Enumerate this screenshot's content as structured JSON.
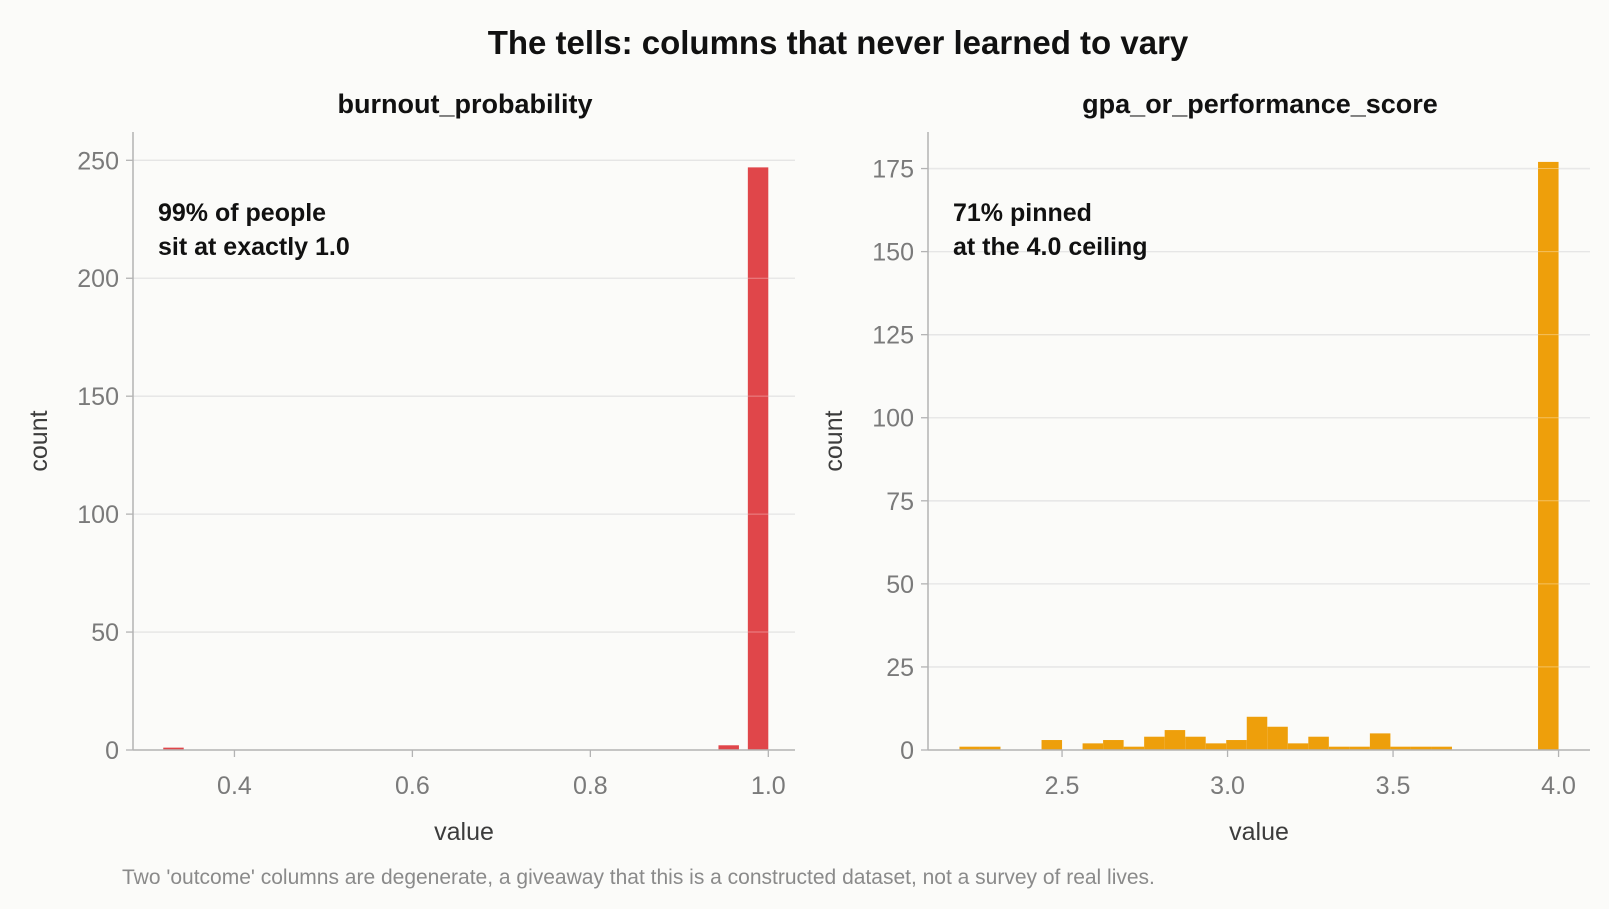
{
  "title": "The tells: columns that never learned to vary",
  "caption": "Two 'outcome' columns are degenerate, a giveaway that this is a constructed dataset, not a survey of real lives.",
  "chart_data": [
    {
      "type": "bar",
      "subtype": "histogram",
      "title": "burnout_probability",
      "xlabel": "value",
      "ylabel": "count",
      "color": "#e0464a",
      "xlim": [
        0.286,
        1.03
      ],
      "ylim": [
        0,
        262
      ],
      "xticks": [
        0.4,
        0.6,
        0.8,
        1.0
      ],
      "xtick_labels": [
        "0.4",
        "0.6",
        "0.8",
        "1.0"
      ],
      "yticks": [
        0,
        50,
        100,
        150,
        200,
        250
      ],
      "ytick_labels": [
        "0",
        "50",
        "100",
        "150",
        "200",
        "250"
      ],
      "annotation": [
        "99% of people",
        "sit at exactly 1.0"
      ],
      "bins": [
        {
          "x0": 0.32,
          "x1": 0.343,
          "count": 1
        },
        {
          "x0": 0.944,
          "x1": 0.967,
          "count": 2
        },
        {
          "x0": 0.977,
          "x1": 1.0,
          "count": 247
        }
      ],
      "grid": "horizontal"
    },
    {
      "type": "bar",
      "subtype": "histogram",
      "title": "gpa_or_performance_score",
      "xlabel": "value",
      "ylabel": "count",
      "color": "#ee9f0b",
      "xlim": [
        2.095,
        4.095
      ],
      "ylim": [
        0,
        186
      ],
      "xticks": [
        2.5,
        3.0,
        3.5,
        4.0
      ],
      "xtick_labels": [
        "2.5",
        "3.0",
        "3.5",
        "4.0"
      ],
      "yticks": [
        0,
        25,
        50,
        75,
        100,
        125,
        150,
        175
      ],
      "ytick_labels": [
        "0",
        "25",
        "50",
        "75",
        "100",
        "125",
        "150",
        "175"
      ],
      "annotation": [
        "71% pinned",
        "at the 4.0 ceiling"
      ],
      "bins": [
        {
          "x0": 2.19,
          "x1": 2.252,
          "count": 1
        },
        {
          "x0": 2.252,
          "x1": 2.314,
          "count": 1
        },
        {
          "x0": 2.314,
          "x1": 2.376,
          "count": 0
        },
        {
          "x0": 2.376,
          "x1": 2.438,
          "count": 0
        },
        {
          "x0": 2.438,
          "x1": 2.5,
          "count": 3
        },
        {
          "x0": 2.5,
          "x1": 2.562,
          "count": 0
        },
        {
          "x0": 2.562,
          "x1": 2.624,
          "count": 2
        },
        {
          "x0": 2.624,
          "x1": 2.686,
          "count": 3
        },
        {
          "x0": 2.686,
          "x1": 2.748,
          "count": 1
        },
        {
          "x0": 2.748,
          "x1": 2.81,
          "count": 4
        },
        {
          "x0": 2.81,
          "x1": 2.872,
          "count": 6
        },
        {
          "x0": 2.872,
          "x1": 2.934,
          "count": 4
        },
        {
          "x0": 2.934,
          "x1": 2.996,
          "count": 2
        },
        {
          "x0": 2.996,
          "x1": 3.058,
          "count": 3
        },
        {
          "x0": 3.058,
          "x1": 3.12,
          "count": 10
        },
        {
          "x0": 3.12,
          "x1": 3.182,
          "count": 7
        },
        {
          "x0": 3.182,
          "x1": 3.244,
          "count": 2
        },
        {
          "x0": 3.244,
          "x1": 3.306,
          "count": 4
        },
        {
          "x0": 3.306,
          "x1": 3.368,
          "count": 1
        },
        {
          "x0": 3.368,
          "x1": 3.43,
          "count": 1
        },
        {
          "x0": 3.43,
          "x1": 3.492,
          "count": 5
        },
        {
          "x0": 3.492,
          "x1": 3.554,
          "count": 1
        },
        {
          "x0": 3.554,
          "x1": 3.616,
          "count": 1
        },
        {
          "x0": 3.616,
          "x1": 3.678,
          "count": 1
        },
        {
          "x0": 3.938,
          "x1": 4.0,
          "count": 177
        }
      ],
      "grid": "horizontal"
    }
  ]
}
